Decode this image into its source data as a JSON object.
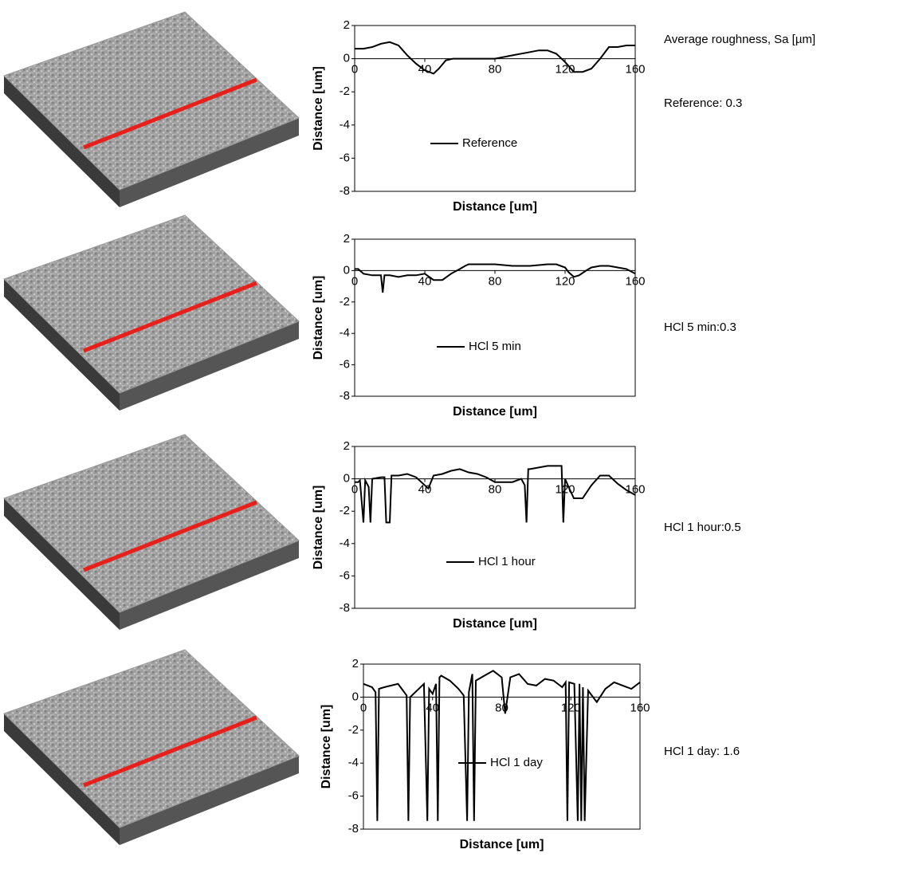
{
  "header": {
    "title": "Average roughness, Sa [µm]"
  },
  "chart_data": [
    {
      "type": "line",
      "xlabel": "Distance [um]",
      "ylabel": "Distance [um]",
      "annotation": "Reference: 0.3",
      "x": [
        0,
        5,
        10,
        15,
        20,
        25,
        30,
        35,
        40,
        45,
        48,
        52,
        56,
        60,
        70,
        80,
        90,
        100,
        105,
        110,
        115,
        120,
        125,
        130,
        135,
        140,
        145,
        150,
        155,
        160
      ],
      "series": [
        {
          "name": "Reference",
          "color": "#000000",
          "values": [
            0.6,
            0.6,
            0.7,
            0.9,
            1.0,
            0.8,
            0.2,
            -0.3,
            -0.7,
            -0.9,
            -0.6,
            -0.1,
            0,
            0,
            0,
            0,
            0.2,
            0.4,
            0.5,
            0.5,
            0.3,
            -0.2,
            -0.8,
            -0.8,
            -0.6,
            0,
            0.7,
            0.7,
            0.8,
            0.8
          ]
        }
      ],
      "xlim": [
        0,
        160
      ],
      "ylim": [
        -8,
        2
      ],
      "xticks": [
        0,
        40,
        80,
        120,
        160
      ],
      "yticks": [
        -8,
        -6,
        -4,
        -2,
        0,
        2
      ]
    },
    {
      "type": "line",
      "xlabel": "Distance [um]",
      "ylabel": "Distance [um]",
      "annotation": "HCl 5 min:0.3",
      "x": [
        0,
        2,
        5,
        10,
        15,
        16,
        17,
        20,
        25,
        30,
        35,
        40,
        45,
        48,
        50,
        55,
        60,
        63,
        65,
        70,
        80,
        90,
        100,
        110,
        115,
        120,
        122,
        125,
        128,
        132,
        135,
        140,
        145,
        150,
        155,
        160
      ],
      "series": [
        {
          "name": "HCl 5 min",
          "color": "#000000",
          "values": [
            0.1,
            0.1,
            -0.2,
            -0.3,
            -0.3,
            -1.4,
            -0.3,
            -0.3,
            -0.4,
            -0.3,
            -0.3,
            -0.2,
            -0.6,
            -0.6,
            -0.6,
            -0.2,
            0.1,
            0.3,
            0.4,
            0.4,
            0.4,
            0.3,
            0.3,
            0.4,
            0.4,
            0.2,
            -0.1,
            -0.4,
            -0.3,
            0,
            0.2,
            0.3,
            0.3,
            0.2,
            0.1,
            -0.2
          ]
        }
      ],
      "xlim": [
        0,
        160
      ],
      "ylim": [
        -8,
        2
      ],
      "xticks": [
        0,
        40,
        80,
        120,
        160
      ],
      "yticks": [
        -8,
        -6,
        -4,
        -2,
        0,
        2
      ]
    },
    {
      "type": "line",
      "xlabel": "Distance [um]",
      "ylabel": "Distance [um]",
      "annotation": "HCl 1 hour:0.5",
      "x": [
        0,
        2,
        3,
        5,
        6,
        8,
        9,
        10,
        15,
        17,
        18,
        19,
        20,
        21,
        25,
        30,
        35,
        40,
        42,
        45,
        50,
        55,
        60,
        65,
        70,
        75,
        80,
        90,
        95,
        97,
        98,
        99,
        100,
        110,
        118,
        119,
        120,
        122,
        125,
        130,
        135,
        140,
        145,
        150,
        155,
        160
      ],
      "series": [
        {
          "name": "HCl 1 hour",
          "color": "#000000",
          "values": [
            -0.2,
            -0.2,
            -0.1,
            -2.7,
            -0.1,
            -0.5,
            -2.7,
            0,
            0.1,
            0.1,
            -2.7,
            -2.7,
            -2.7,
            0.2,
            0.2,
            0.3,
            0.1,
            -0.4,
            -0.6,
            0.2,
            0.3,
            0.5,
            0.6,
            0.4,
            0.3,
            0.1,
            -0.2,
            -0.2,
            0,
            -0.4,
            -2.7,
            0.6,
            0.6,
            0.8,
            0.8,
            -2.7,
            0,
            -0.5,
            -1.2,
            -1.2,
            -0.4,
            0.2,
            0.2,
            -0.3,
            -0.7,
            -1
          ]
        }
      ],
      "xlim": [
        0,
        160
      ],
      "ylim": [
        -8,
        2
      ],
      "xticks": [
        0,
        40,
        80,
        120,
        160
      ],
      "yticks": [
        -8,
        -6,
        -4,
        -2,
        0,
        2
      ]
    },
    {
      "type": "line",
      "xlabel": "Distance [um]",
      "ylabel": "Distance [um]",
      "annotation": "HCl 1 day: 1.6",
      "x": [
        0,
        5,
        7,
        8,
        9,
        12,
        20,
        25,
        26,
        27,
        30,
        35,
        37,
        38,
        40,
        42,
        43,
        44,
        45,
        50,
        55,
        58,
        60,
        61,
        63,
        64,
        65,
        70,
        75,
        80,
        82,
        85,
        90,
        95,
        100,
        105,
        110,
        115,
        117,
        118,
        119,
        122,
        124,
        125,
        126,
        127,
        128,
        130,
        135,
        140,
        145,
        150,
        155,
        160
      ],
      "series": [
        {
          "name": "HCl 1 day",
          "color": "#000000",
          "values": [
            0.8,
            0.6,
            0.3,
            -7.5,
            0.5,
            0.6,
            0.8,
            0.1,
            -7.5,
            0,
            0.3,
            0.8,
            -7.5,
            0.5,
            0.2,
            0.8,
            -7.5,
            1.2,
            1.3,
            1.0,
            0.5,
            0.1,
            -7.5,
            0.3,
            1.4,
            -7.5,
            1.0,
            1.3,
            1.6,
            1.2,
            -1.0,
            1.2,
            1.4,
            0.8,
            0.7,
            1.1,
            1.0,
            0.6,
            0.9,
            -7.5,
            0.9,
            0.8,
            -7.5,
            0.8,
            -7.5,
            0.6,
            -7.5,
            0.4,
            -0.3,
            0.5,
            0.9,
            0.7,
            0.5,
            0.9
          ]
        }
      ],
      "xlim": [
        0,
        160
      ],
      "ylim": [
        -8,
        2
      ],
      "xticks": [
        0,
        40,
        80,
        120,
        160
      ],
      "yticks": [
        -8,
        -6,
        -4,
        -2,
        0,
        2
      ]
    }
  ]
}
